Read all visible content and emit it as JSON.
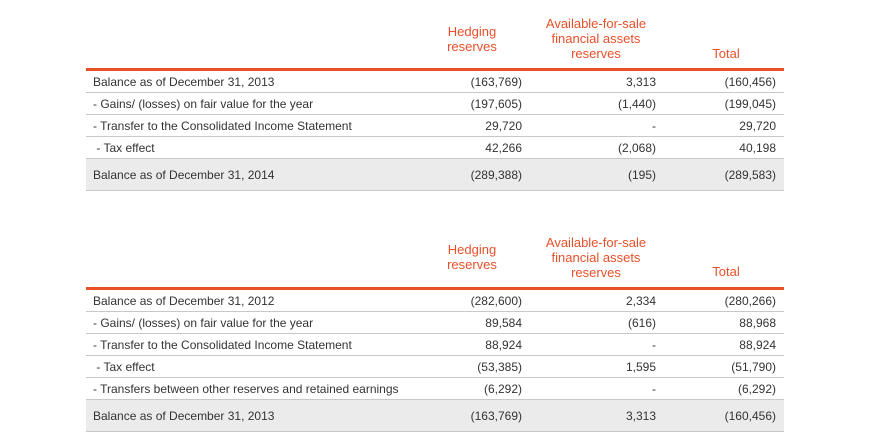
{
  "tables": [
    {
      "headers": {
        "col1": [
          "Hedging",
          "reserves"
        ],
        "col2": [
          "Available-for-sale",
          "financial assets",
          "reserves"
        ],
        "col3": [
          "Total"
        ]
      },
      "rows": [
        {
          "label": "Balance as of December 31, 2013",
          "hedging": "(163,769)",
          "afs": "3,313",
          "total": "(160,456)"
        },
        {
          "label": "- Gains/ (losses) on fair value for the year",
          "hedging": "(197,605)",
          "afs": "(1,440)",
          "total": "(199,045)"
        },
        {
          "label": "- Transfer to the Consolidated Income Statement",
          "hedging": "29,720",
          "afs": "-",
          "total": "29,720"
        },
        {
          "label": " - Tax effect",
          "hedging": "42,266",
          "afs": "(2,068)",
          "total": "40,198"
        },
        {
          "label": "Balance as of December 31, 2014",
          "hedging": "(289,388)",
          "afs": "(195)",
          "total": "(289,583)"
        }
      ]
    },
    {
      "headers": {
        "col1": [
          "Hedging",
          "reserves"
        ],
        "col2": [
          "Available-for-sale",
          "financial assets",
          "reserves"
        ],
        "col3": [
          "Total"
        ]
      },
      "rows": [
        {
          "label": "Balance as of December 31, 2012",
          "hedging": "(282,600)",
          "afs": "2,334",
          "total": "(280,266)"
        },
        {
          "label": "- Gains/ (losses) on fair value for the year",
          "hedging": "89,584",
          "afs": "(616)",
          "total": "88,968"
        },
        {
          "label": "- Transfer to the Consolidated Income Statement",
          "hedging": "88,924",
          "afs": "-",
          "total": "88,924"
        },
        {
          "label": " - Tax effect",
          "hedging": "(53,385)",
          "afs": "1,595",
          "total": "(51,790)"
        },
        {
          "label": "- Transfers between other reserves and retained earnings",
          "hedging": "(6,292)",
          "afs": "-",
          "total": "(6,292)"
        },
        {
          "label": "Balance as of December 31, 2013",
          "hedging": "(163,769)",
          "afs": "3,313",
          "total": "(160,456)"
        }
      ]
    }
  ],
  "colors": {
    "accent": "#e8502a",
    "total_row_bg": "#ebebeb"
  }
}
